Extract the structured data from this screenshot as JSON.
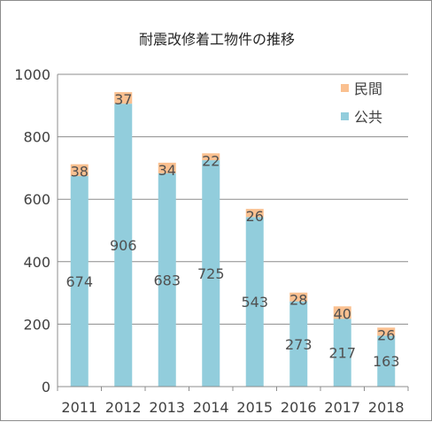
{
  "chart_data": {
    "type": "bar",
    "stacked": true,
    "title": "耐震改修着工物件の推移",
    "categories": [
      "2011",
      "2012",
      "2013",
      "2014",
      "2015",
      "2016",
      "2017",
      "2018"
    ],
    "series": [
      {
        "name": "公共",
        "color": "#92cddc",
        "values": [
          674,
          906,
          683,
          725,
          543,
          273,
          217,
          163
        ]
      },
      {
        "name": "民間",
        "color": "#fac090",
        "values": [
          38,
          37,
          34,
          22,
          26,
          28,
          40,
          26
        ]
      }
    ],
    "ylim": [
      0,
      1000
    ],
    "yticks": [
      0,
      200,
      400,
      600,
      800,
      1000
    ],
    "grid": true,
    "legend_position": "top-right"
  }
}
